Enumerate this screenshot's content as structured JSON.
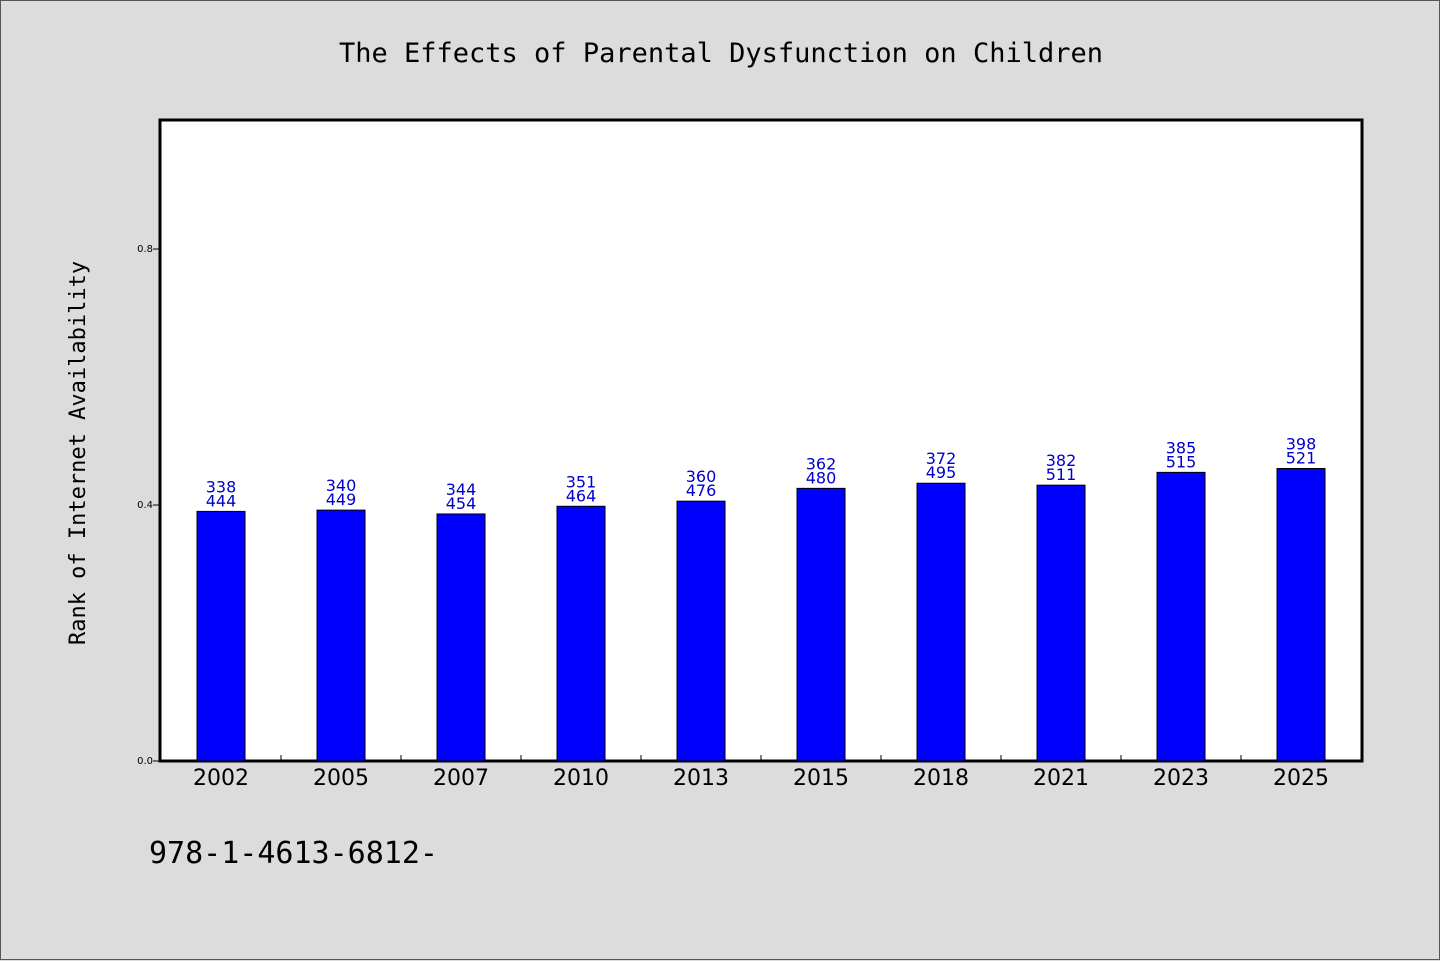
{
  "chart_data": {
    "type": "bar",
    "title": "The Effects of Parental Dysfunction on Children",
    "xlabel": "",
    "ylabel": "Rank of Internet Availability",
    "categories": [
      "2002",
      "2005",
      "2007",
      "2010",
      "2013",
      "2015",
      "2018",
      "2021",
      "2023",
      "2025"
    ],
    "values": [
      0.39,
      0.392,
      0.386,
      0.398,
      0.406,
      0.426,
      0.434,
      0.431,
      0.451,
      0.457
    ],
    "label_top": [
      "338",
      "340",
      "344",
      "351",
      "360",
      "362",
      "372",
      "382",
      "385",
      "398"
    ],
    "label_bottom": [
      "444",
      "449",
      "454",
      "464",
      "476",
      "480",
      "495",
      "511",
      "515",
      "521"
    ],
    "yticks": [
      "0.0",
      "0.4",
      "0.8"
    ],
    "ylim": [
      0,
      1.0
    ],
    "grid": false,
    "bar_color": "#0000ff",
    "label_color": "#0000cc"
  },
  "footer_text": "978-1-4613-6812-"
}
